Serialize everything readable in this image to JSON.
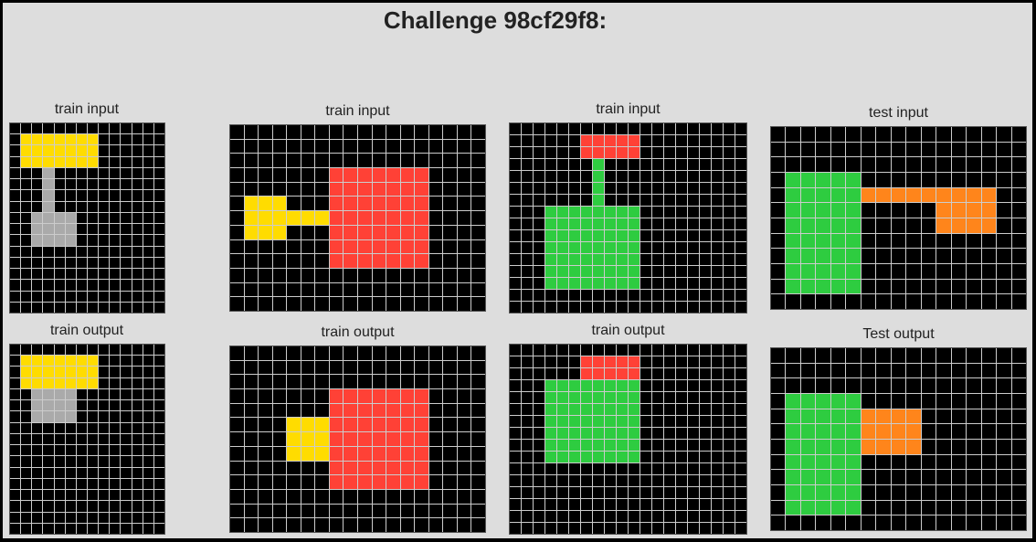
{
  "title": "Challenge 98cf29f8:",
  "palette": {
    "0": "#000000",
    "2": "#ff4136",
    "3": "#2ecc40",
    "4": "#ffdc00",
    "5": "#aaaaaa",
    "7": "#ff851b"
  },
  "grid_line_color": "#ffffff",
  "panels": [
    {
      "label": "train input",
      "rows": 17,
      "cols": 14,
      "rects": [
        {
          "c": 4,
          "r0": 1,
          "r1": 3,
          "c0": 1,
          "c1": 7
        },
        {
          "c": 5,
          "r0": 4,
          "r1": 7,
          "c0": 3,
          "c1": 3
        },
        {
          "c": 5,
          "r0": 8,
          "r1": 10,
          "c0": 2,
          "c1": 5
        }
      ]
    },
    {
      "label": "train output",
      "rows": 17,
      "cols": 14,
      "rects": [
        {
          "c": 4,
          "r0": 1,
          "r1": 3,
          "c0": 1,
          "c1": 7
        },
        {
          "c": 5,
          "r0": 4,
          "r1": 6,
          "c0": 2,
          "c1": 5
        }
      ]
    },
    {
      "label": "train input",
      "rows": 13,
      "cols": 18,
      "rects": [
        {
          "c": 4,
          "r0": 5,
          "r1": 7,
          "c0": 1,
          "c1": 3
        },
        {
          "c": 4,
          "r0": 6,
          "r1": 6,
          "c0": 4,
          "c1": 6
        },
        {
          "c": 2,
          "r0": 3,
          "r1": 9,
          "c0": 7,
          "c1": 13
        }
      ]
    },
    {
      "label": "train output",
      "rows": 13,
      "cols": 18,
      "rects": [
        {
          "c": 4,
          "r0": 5,
          "r1": 7,
          "c0": 4,
          "c1": 6
        },
        {
          "c": 2,
          "r0": 3,
          "r1": 9,
          "c0": 7,
          "c1": 13
        }
      ]
    },
    {
      "label": "train input",
      "rows": 16,
      "cols": 20,
      "rects": [
        {
          "c": 2,
          "r0": 1,
          "r1": 2,
          "c0": 6,
          "c1": 10
        },
        {
          "c": 3,
          "r0": 3,
          "r1": 7,
          "c0": 7,
          "c1": 7
        },
        {
          "c": 3,
          "r0": 7,
          "r1": 13,
          "c0": 3,
          "c1": 10
        }
      ]
    },
    {
      "label": "train output",
      "rows": 16,
      "cols": 20,
      "rects": [
        {
          "c": 2,
          "r0": 1,
          "r1": 2,
          "c0": 6,
          "c1": 10
        },
        {
          "c": 3,
          "r0": 3,
          "r1": 9,
          "c0": 3,
          "c1": 10
        }
      ]
    },
    {
      "label": "test input",
      "rows": 12,
      "cols": 17,
      "rects": [
        {
          "c": 3,
          "r0": 3,
          "r1": 10,
          "c0": 1,
          "c1": 5
        },
        {
          "c": 7,
          "r0": 4,
          "r1": 4,
          "c0": 6,
          "c1": 10
        },
        {
          "c": 7,
          "r0": 4,
          "r1": 6,
          "c0": 11,
          "c1": 14
        }
      ]
    },
    {
      "label": "Test output",
      "rows": 12,
      "cols": 17,
      "rects": [
        {
          "c": 3,
          "r0": 3,
          "r1": 10,
          "c0": 1,
          "c1": 5
        },
        {
          "c": 7,
          "r0": 4,
          "r1": 6,
          "c0": 6,
          "c1": 9
        }
      ]
    }
  ]
}
